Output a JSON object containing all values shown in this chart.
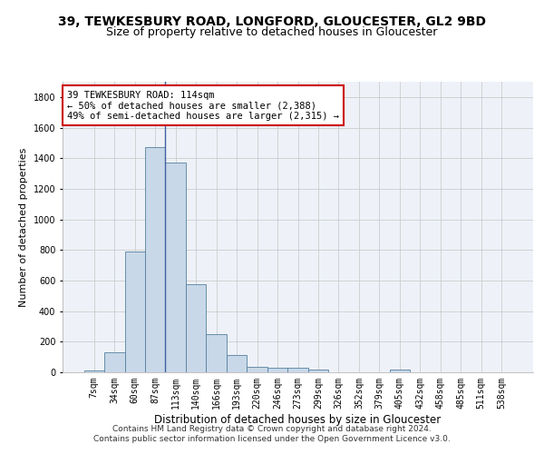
{
  "title1": "39, TEWKESBURY ROAD, LONGFORD, GLOUCESTER, GL2 9BD",
  "title2": "Size of property relative to detached houses in Gloucester",
  "xlabel": "Distribution of detached houses by size in Gloucester",
  "ylabel": "Number of detached properties",
  "bar_labels": [
    "7sqm",
    "34sqm",
    "60sqm",
    "87sqm",
    "113sqm",
    "140sqm",
    "166sqm",
    "193sqm",
    "220sqm",
    "246sqm",
    "273sqm",
    "299sqm",
    "326sqm",
    "352sqm",
    "379sqm",
    "405sqm",
    "432sqm",
    "458sqm",
    "485sqm",
    "511sqm",
    "538sqm"
  ],
  "bar_values": [
    10,
    130,
    790,
    1470,
    1370,
    575,
    250,
    110,
    35,
    30,
    30,
    20,
    0,
    0,
    0,
    20,
    0,
    0,
    0,
    0,
    0
  ],
  "bar_color": "#c8d8e8",
  "bar_edge_color": "#5580a0",
  "vline_index": 3.5,
  "annotation_text": "39 TEWKESBURY ROAD: 114sqm\n← 50% of detached houses are smaller (2,388)\n49% of semi-detached houses are larger (2,315) →",
  "annotation_box_color": "#ffffff",
  "annotation_box_edge_color": "#cc0000",
  "vline_color": "#4060a0",
  "ylim": [
    0,
    1900
  ],
  "yticks": [
    0,
    200,
    400,
    600,
    800,
    1000,
    1200,
    1400,
    1600,
    1800
  ],
  "grid_color": "#cccccc",
  "bg_color": "#eef2f8",
  "footer1": "Contains HM Land Registry data © Crown copyright and database right 2024.",
  "footer2": "Contains public sector information licensed under the Open Government Licence v3.0.",
  "title1_fontsize": 10,
  "title2_fontsize": 9,
  "xlabel_fontsize": 8.5,
  "ylabel_fontsize": 8,
  "tick_fontsize": 7,
  "annotation_fontsize": 7.5,
  "footer_fontsize": 6.5
}
